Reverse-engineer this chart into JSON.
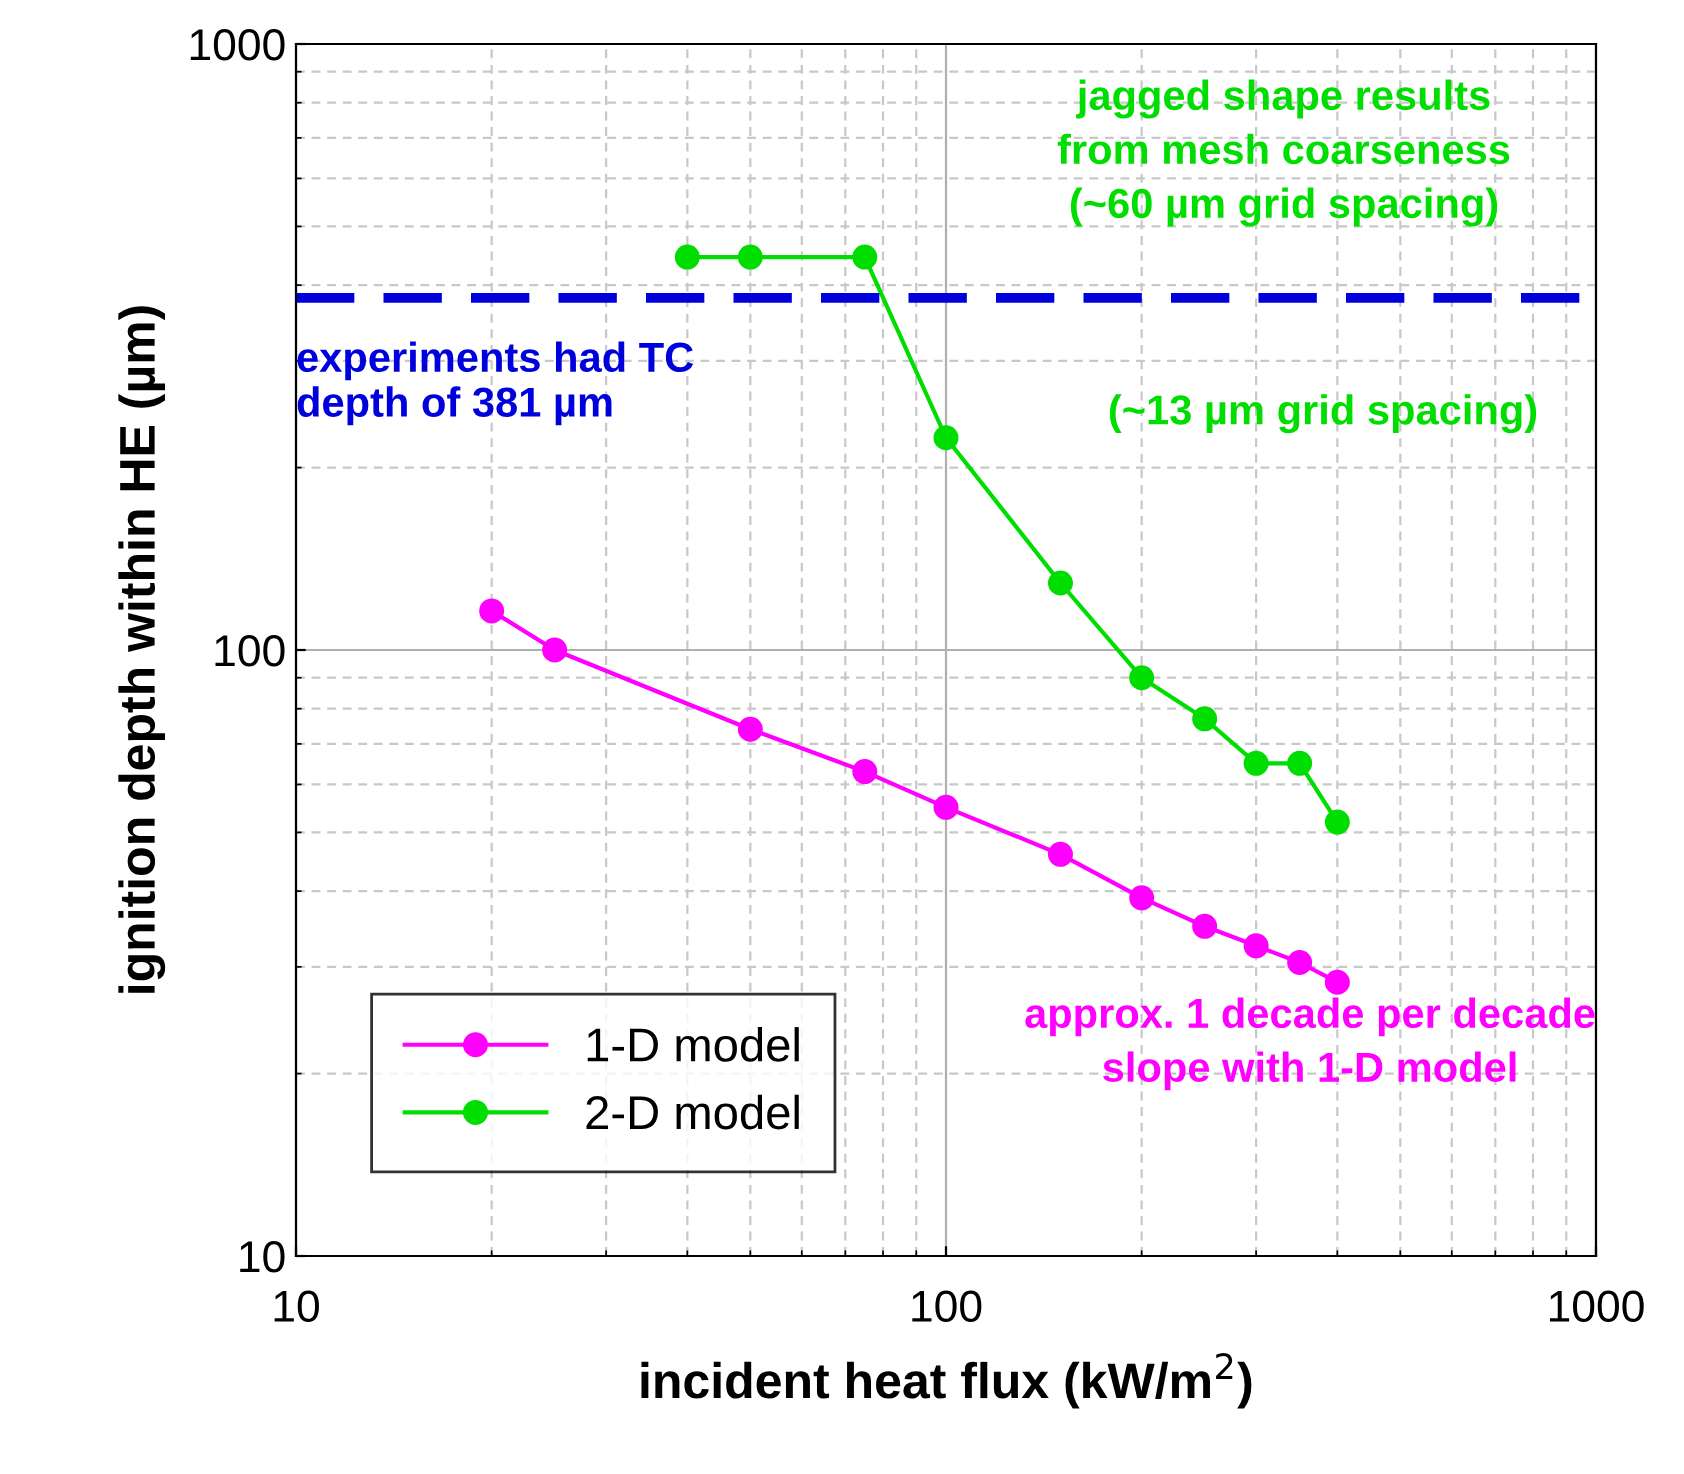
{
  "chart_data": {
    "type": "line",
    "xlabel": "incident heat flux (kW/m$^{2}$)",
    "ylabel": "ignition depth within HE (µm)",
    "log": "xy",
    "xlim": [
      10,
      1000
    ],
    "ylim": [
      10,
      1000
    ],
    "xticks": [
      10,
      100,
      1000
    ],
    "yticks": [
      10,
      100,
      1000
    ],
    "grid": true,
    "legend": "bottom left",
    "marker": "circle",
    "line_style": "solid",
    "series": [
      {
        "name": "1-D model",
        "color": "#ff00ff",
        "x": [
          20,
          25,
          50,
          75,
          100,
          150,
          200,
          250,
          300,
          350,
          400
        ],
        "values": [
          116,
          100,
          74,
          63,
          55,
          46,
          39,
          35,
          32.5,
          30.5,
          28.3
        ]
      },
      {
        "name": "2-D model",
        "color": "#00dd00",
        "x": [
          40,
          50,
          75,
          100,
          150,
          200,
          250,
          300,
          350,
          400
        ],
        "values": [
          445,
          445,
          445,
          224,
          129,
          90,
          77,
          65,
          65,
          52
        ]
      }
    ],
    "ref_lines": [
      {
        "axis": "y",
        "value": 381,
        "label": "experiments had TC\ndepth of 381 µm",
        "color": "#0000dd",
        "line_style": "dashed"
      }
    ],
    "annotations": [
      "jagged shape results\nfrom mesh coarseness\n(~60 µm grid spacing)",
      "(~13 µm grid spacing)",
      "approx. 1 decade per decade\nslope with 1-D model"
    ]
  }
}
